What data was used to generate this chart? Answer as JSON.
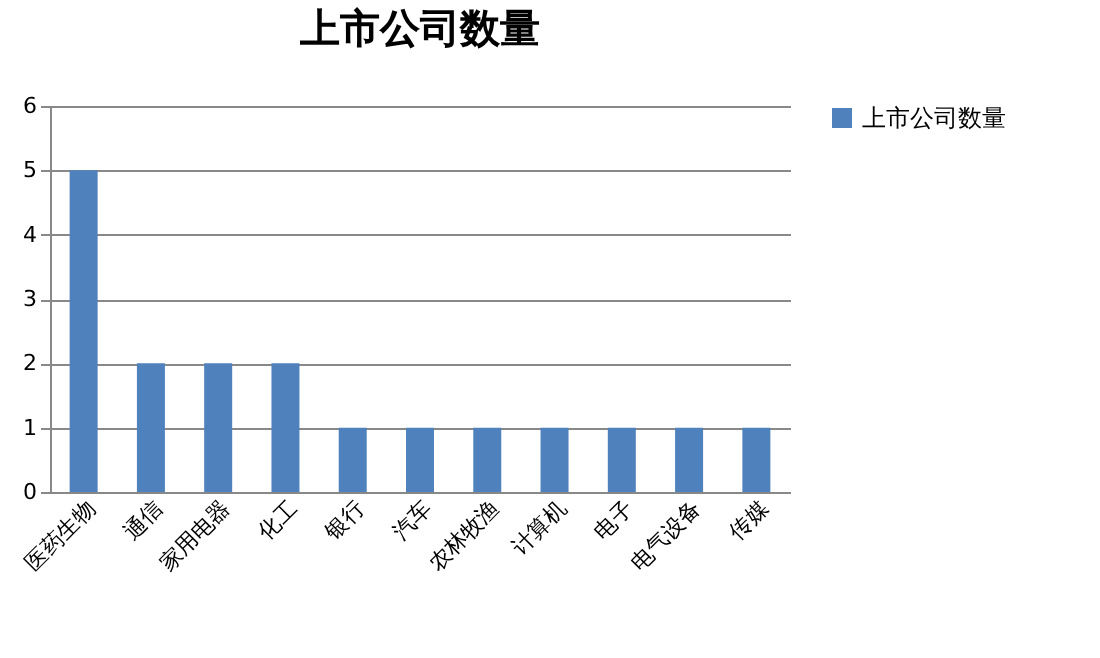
{
  "chart_data": {
    "type": "bar",
    "title": "上市公司数量",
    "categories": [
      "医药生物",
      "通信",
      "家用电器",
      "化工",
      "银行",
      "汽车",
      "农林牧渔",
      "计算机",
      "电子",
      "电气设备",
      "传媒"
    ],
    "series": [
      {
        "name": "上市公司数量",
        "color": "#4f81bd",
        "values": [
          5,
          2,
          2,
          2,
          1,
          1,
          1,
          1,
          1,
          1,
          1
        ]
      }
    ],
    "ylim": [
      0,
      6
    ],
    "yticks": [
      0,
      1,
      2,
      3,
      4,
      5,
      6
    ],
    "grid": "y",
    "legend": "right"
  }
}
